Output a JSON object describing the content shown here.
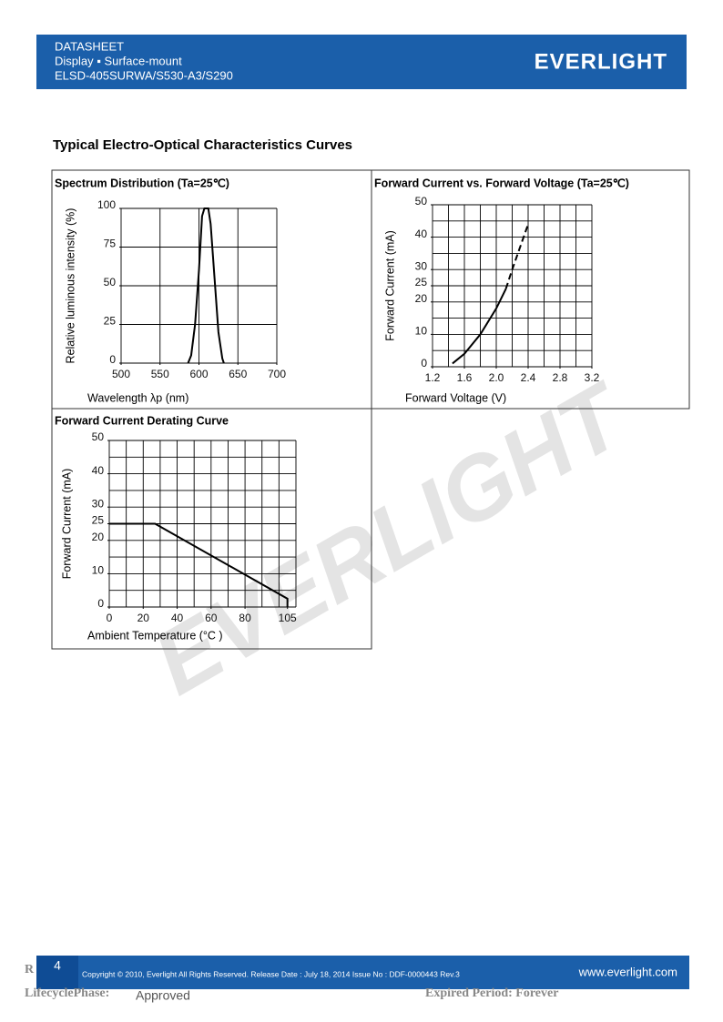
{
  "header": {
    "label": "DATASHEET",
    "subtitle": "Display ▪ Surface-mount",
    "part": "ELSD-405SURWA/S530-A3/S290",
    "logo": "EVERLIGHT"
  },
  "section_title": "Typical Electro-Optical Characteristics Curves",
  "watermark": "EVERLIGHT",
  "chart_data": [
    {
      "type": "line",
      "title": "Spectrum Distribution (Ta=25℃)",
      "x_label": "Wavelength λp (nm)",
      "y_label": "Relative luminous intensity (%)",
      "xlim": [
        500,
        700
      ],
      "xticks": [
        500,
        550,
        600,
        650,
        700
      ],
      "ylim": [
        0,
        100
      ],
      "yticks": [
        0,
        25,
        50,
        75,
        100
      ],
      "xgrid": [
        500,
        550,
        600,
        650,
        700
      ],
      "ygrid": [
        0,
        25,
        50,
        75,
        100
      ],
      "series": [
        {
          "color": "#000000",
          "dashed": false,
          "x": [
            586,
            590,
            595,
            600,
            604,
            607,
            612,
            615,
            620,
            625,
            630,
            632
          ],
          "values": [
            0,
            5,
            25,
            60,
            95,
            100,
            100,
            90,
            55,
            20,
            3,
            0
          ]
        }
      ]
    },
    {
      "type": "line",
      "title": "Forward Current vs. Forward Voltage (Ta=25℃)",
      "x_label": "Forward Voltage (V)",
      "y_label": "Forward Current (mA)",
      "xlim": [
        1.2,
        3.2
      ],
      "xticks": [
        1.2,
        1.6,
        {
          "value": 2,
          "label": "2.0"
        },
        2.4,
        2.8,
        3.2
      ],
      "ylim": [
        0,
        50
      ],
      "yticks": [
        0,
        10,
        20,
        25,
        30,
        40,
        50
      ],
      "xgrid": [
        1.2,
        1.4,
        1.6,
        1.8,
        2.0,
        2.2,
        2.4,
        2.6,
        2.8,
        3.0,
        3.2
      ],
      "ygrid": [
        0,
        5,
        10,
        15,
        20,
        25,
        30,
        35,
        40,
        45,
        50
      ],
      "series": [
        {
          "color": "#000000",
          "dashed": false,
          "x": [
            1.45,
            1.6,
            1.8,
            2.0,
            2.12
          ],
          "values": [
            1,
            4,
            10,
            18,
            24
          ]
        },
        {
          "color": "#000000",
          "dashed": true,
          "x": [
            2.12,
            2.2,
            2.3,
            2.4
          ],
          "values": [
            24,
            30,
            37,
            44
          ]
        }
      ]
    },
    {
      "type": "line",
      "title": "Forward Current Derating Curve",
      "x_label": "Ambient Temperature (°C )",
      "y_label": "Forward Current (mA)",
      "xlim": [
        0,
        110
      ],
      "xticks": [
        0,
        20,
        40,
        60,
        80,
        105
      ],
      "ylim": [
        0,
        50
      ],
      "yticks": [
        0,
        10,
        20,
        25,
        30,
        40,
        50
      ],
      "xgrid": [
        0,
        10,
        20,
        30,
        40,
        50,
        60,
        70,
        80,
        90,
        100,
        110
      ],
      "ygrid": [
        0,
        5,
        10,
        15,
        20,
        25,
        30,
        35,
        40,
        45,
        50
      ],
      "series": [
        {
          "color": "#000000",
          "dashed": false,
          "x": [
            0,
            27,
            105,
            105
          ],
          "values": [
            25,
            25,
            2.5,
            0
          ]
        }
      ]
    }
  ],
  "footer": {
    "page": "4",
    "copyright": "Copyright © 2010, Everlight All Rights Reserved. Release Date : July 18, 2014 Issue No : DDF-0000443 Rev.3",
    "website": "www.everlight.com",
    "r": "R",
    "lifecycle_label": "LifecyclePhase:",
    "lifecycle_value": "Approved",
    "expired": "Expired Period: Forever"
  }
}
